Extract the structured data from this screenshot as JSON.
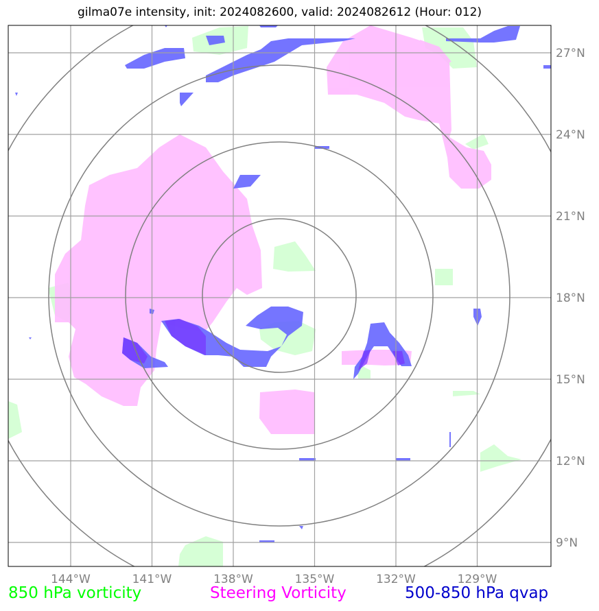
{
  "title": "gilma07e intensity, init: 2024082600, valid: 2024082612 (Hour: 012)",
  "map": {
    "lon_labels": [
      "144°W",
      "141°W",
      "138°W",
      "135°W",
      "132°W",
      "129°W"
    ],
    "lat_labels": [
      "27°N",
      "24°N",
      "21°N",
      "18°N",
      "15°N",
      "12°N",
      "9°N"
    ],
    "grid_color": "#a0a0a0",
    "ring_color": "#808080"
  },
  "legend": [
    {
      "label": "850 hPa vorticity",
      "color": "#00ff00"
    },
    {
      "label": "Steering Vorticity",
      "color": "#ff00ff"
    },
    {
      "label": "500-850 hPa qvap",
      "color": "#0000cc"
    }
  ],
  "fills": {
    "vorticity_850": "#ccffcc",
    "steering": "#ffbbff",
    "qvap": "#6666ff"
  }
}
